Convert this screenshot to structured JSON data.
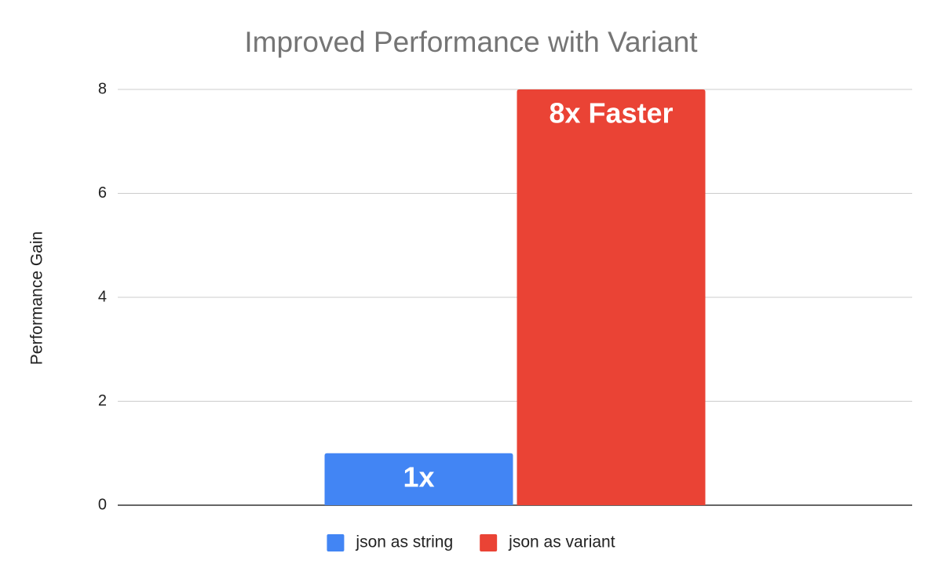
{
  "chart_data": {
    "type": "bar",
    "title": "Improved Performance with Variant",
    "y_label": "Performance Gain",
    "categories": [
      null
    ],
    "series": [
      {
        "name": "json as string",
        "color": "#4285f4",
        "values": [
          1
        ],
        "value_labels": [
          "1x"
        ]
      },
      {
        "name": "json as variant",
        "color": "#ea4335",
        "values": [
          8
        ],
        "value_labels": [
          "8x Faster"
        ]
      }
    ],
    "ylim": [
      0,
      8
    ],
    "yticks": [
      0,
      2,
      4,
      6,
      8
    ],
    "grid": true,
    "legend": "bottom"
  }
}
